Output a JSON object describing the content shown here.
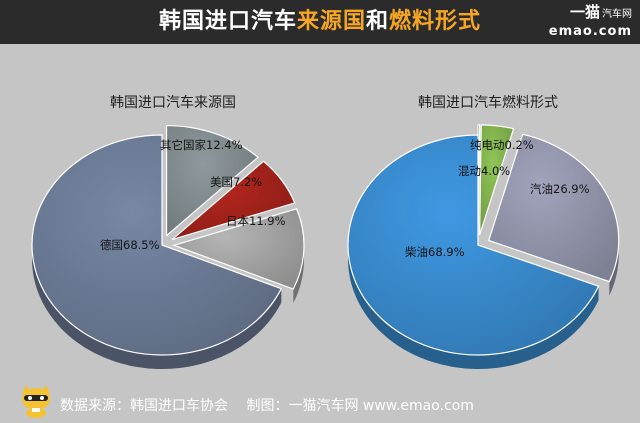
{
  "header": {
    "title_part1": "韩国进口汽车",
    "title_part2": "来源国",
    "title_part3": "和",
    "title_part4": "燃料形式",
    "brand_line1": "一猫",
    "brand_line1_small": "汽车网",
    "brand_line2": "emao.com"
  },
  "chart_data": [
    {
      "type": "pie",
      "title": "韩国进口汽车来源国",
      "slices": [
        {
          "label": "其它国家",
          "value": 12.4,
          "color": "#8f9a9e"
        },
        {
          "label": "美国",
          "value": 7.2,
          "color": "#b3261e"
        },
        {
          "label": "日本",
          "value": 11.9,
          "color": "#b5b5b5"
        },
        {
          "label": "德国",
          "value": 68.5,
          "color": "#7788a5"
        }
      ],
      "exploded": [
        "其它国家",
        "美国",
        "日本"
      ]
    },
    {
      "type": "pie",
      "title": "韩国进口汽车燃料形式",
      "slices": [
        {
          "label": "纯电动",
          "value": 0.2,
          "color": "#3d8c2a"
        },
        {
          "label": "混动",
          "value": 4.0,
          "color": "#8fc556"
        },
        {
          "label": "汽油",
          "value": 26.9,
          "color": "#a2a4bd"
        },
        {
          "label": "柴油",
          "value": 68.9,
          "color": "#3f99e3"
        }
      ],
      "exploded": [
        "纯电动",
        "混动",
        "汽油"
      ]
    }
  ],
  "footer": {
    "source": "数据来源：韩国进口车协会　 制图：一猫汽车网  www.emao.com"
  }
}
